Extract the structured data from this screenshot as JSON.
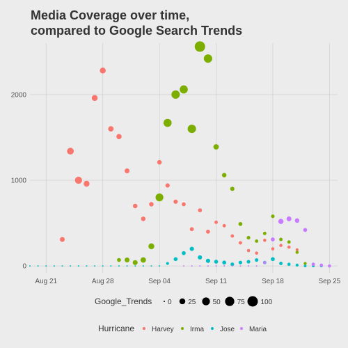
{
  "chart_data": {
    "type": "scatter",
    "title_line1": "Media Coverage over time,",
    "title_line2": "compared to Google Search Trends",
    "xlabel": "",
    "ylabel": "",
    "x_ticks": [
      "Aug 21",
      "Aug 28",
      "Sep 04",
      "Sep 11",
      "Sep 18",
      "Sep 25"
    ],
    "y_ticks": [
      "0",
      "1000",
      "2000"
    ],
    "ylim": [
      -80,
      2600
    ],
    "x_day_range": [
      19,
      57
    ],
    "grid": true,
    "size_legend": {
      "title": "Google_Trends",
      "breaks": [
        0,
        25,
        50,
        75,
        100
      ],
      "labels": [
        "0",
        "25",
        "50",
        "75",
        "100"
      ]
    },
    "color_legend": {
      "title": "Hurricane",
      "items": [
        {
          "name": "Harvey",
          "color": "#F8766D"
        },
        {
          "name": "Irma",
          "color": "#7CAE00"
        },
        {
          "name": "Jose",
          "color": "#00BFC4"
        },
        {
          "name": "Maria",
          "color": "#C77CFF"
        }
      ]
    },
    "series": [
      {
        "name": "Harvey",
        "color": "#F8766D",
        "points": [
          {
            "date": "Aug 23",
            "value": 310,
            "trend": 15
          },
          {
            "date": "Aug 24",
            "value": 1340,
            "trend": 35
          },
          {
            "date": "Aug 25",
            "value": 1000,
            "trend": 40
          },
          {
            "date": "Aug 26",
            "value": 960,
            "trend": 25
          },
          {
            "date": "Aug 27",
            "value": 1960,
            "trend": 25
          },
          {
            "date": "Aug 28",
            "value": 2280,
            "trend": 25
          },
          {
            "date": "Aug 29",
            "value": 1600,
            "trend": 20
          },
          {
            "date": "Aug 30",
            "value": 1510,
            "trend": 18
          },
          {
            "date": "Aug 31",
            "value": 1110,
            "trend": 15
          },
          {
            "date": "Sep 01",
            "value": 700,
            "trend": 12
          },
          {
            "date": "Sep 02",
            "value": 550,
            "trend": 12
          },
          {
            "date": "Sep 03",
            "value": 720,
            "trend": 12
          },
          {
            "date": "Sep 04",
            "value": 1210,
            "trend": 12
          },
          {
            "date": "Sep 05",
            "value": 940,
            "trend": 10
          },
          {
            "date": "Sep 06",
            "value": 750,
            "trend": 10
          },
          {
            "date": "Sep 07",
            "value": 720,
            "trend": 8
          },
          {
            "date": "Sep 08",
            "value": 430,
            "trend": 8
          },
          {
            "date": "Sep 09",
            "value": 650,
            "trend": 8
          },
          {
            "date": "Sep 10",
            "value": 400,
            "trend": 8
          },
          {
            "date": "Sep 11",
            "value": 510,
            "trend": 5
          },
          {
            "date": "Sep 12",
            "value": 470,
            "trend": 5
          },
          {
            "date": "Sep 13",
            "value": 350,
            "trend": 5
          },
          {
            "date": "Sep 14",
            "value": 270,
            "trend": 5
          },
          {
            "date": "Sep 15",
            "value": 180,
            "trend": 4
          },
          {
            "date": "Sep 16",
            "value": 150,
            "trend": 4
          },
          {
            "date": "Sep 17",
            "value": 300,
            "trend": 4
          },
          {
            "date": "Sep 18",
            "value": 200,
            "trend": 4
          },
          {
            "date": "Sep 19",
            "value": 240,
            "trend": 4
          },
          {
            "date": "Sep 20",
            "value": 220,
            "trend": 4
          },
          {
            "date": "Sep 21",
            "value": 190,
            "trend": 3
          },
          {
            "date": "Sep 22",
            "value": 30,
            "trend": 3
          }
        ]
      },
      {
        "name": "Irma",
        "color": "#7CAE00",
        "points": [
          {
            "date": "Aug 30",
            "value": 70,
            "trend": 8
          },
          {
            "date": "Aug 31",
            "value": 70,
            "trend": 15
          },
          {
            "date": "Sep 01",
            "value": 40,
            "trend": 15
          },
          {
            "date": "Sep 02",
            "value": 70,
            "trend": 20
          },
          {
            "date": "Sep 03",
            "value": 230,
            "trend": 25
          },
          {
            "date": "Sep 04",
            "value": 800,
            "trend": 50
          },
          {
            "date": "Sep 05",
            "value": 1670,
            "trend": 55
          },
          {
            "date": "Sep 06",
            "value": 2000,
            "trend": 60
          },
          {
            "date": "Sep 07",
            "value": 2060,
            "trend": 55
          },
          {
            "date": "Sep 08",
            "value": 1600,
            "trend": 60
          },
          {
            "date": "Sep 09",
            "value": 2560,
            "trend": 100
          },
          {
            "date": "Sep 10",
            "value": 2420,
            "trend": 60
          },
          {
            "date": "Sep 11",
            "value": 1390,
            "trend": 20
          },
          {
            "date": "Sep 12",
            "value": 1060,
            "trend": 12
          },
          {
            "date": "Sep 13",
            "value": 900,
            "trend": 10
          },
          {
            "date": "Sep 14",
            "value": 490,
            "trend": 8
          },
          {
            "date": "Sep 15",
            "value": 330,
            "trend": 6
          },
          {
            "date": "Sep 16",
            "value": 290,
            "trend": 5
          },
          {
            "date": "Sep 17",
            "value": 380,
            "trend": 5
          },
          {
            "date": "Sep 18",
            "value": 580,
            "trend": 6
          },
          {
            "date": "Sep 19",
            "value": 310,
            "trend": 5
          },
          {
            "date": "Sep 20",
            "value": 280,
            "trend": 5
          },
          {
            "date": "Sep 21",
            "value": 160,
            "trend": 4
          },
          {
            "date": "Sep 22",
            "value": 30,
            "trend": 3
          }
        ]
      },
      {
        "name": "Jose",
        "color": "#00BFC4",
        "points": [
          {
            "date": "Aug 19",
            "value": 0,
            "trend": 0
          },
          {
            "date": "Aug 20",
            "value": 0,
            "trend": 0
          },
          {
            "date": "Aug 21",
            "value": 0,
            "trend": 0
          },
          {
            "date": "Aug 22",
            "value": 0,
            "trend": 0
          },
          {
            "date": "Aug 23",
            "value": 0,
            "trend": 0
          },
          {
            "date": "Aug 24",
            "value": 0,
            "trend": 0
          },
          {
            "date": "Aug 25",
            "value": 0,
            "trend": 0
          },
          {
            "date": "Aug 26",
            "value": 0,
            "trend": 0
          },
          {
            "date": "Aug 27",
            "value": 0,
            "trend": 0
          },
          {
            "date": "Aug 28",
            "value": 0,
            "trend": 0
          },
          {
            "date": "Aug 29",
            "value": 0,
            "trend": 0
          },
          {
            "date": "Aug 30",
            "value": 0,
            "trend": 0
          },
          {
            "date": "Aug 31",
            "value": 0,
            "trend": 0
          },
          {
            "date": "Sep 01",
            "value": 0,
            "trend": 0
          },
          {
            "date": "Sep 02",
            "value": 0,
            "trend": 0
          },
          {
            "date": "Sep 03",
            "value": 0,
            "trend": 0
          },
          {
            "date": "Sep 04",
            "value": 0,
            "trend": 0
          },
          {
            "date": "Sep 05",
            "value": 30,
            "trend": 3
          },
          {
            "date": "Sep 06",
            "value": 80,
            "trend": 8
          },
          {
            "date": "Sep 07",
            "value": 150,
            "trend": 8
          },
          {
            "date": "Sep 08",
            "value": 200,
            "trend": 10
          },
          {
            "date": "Sep 09",
            "value": 100,
            "trend": 10
          },
          {
            "date": "Sep 10",
            "value": 60,
            "trend": 10
          },
          {
            "date": "Sep 11",
            "value": 50,
            "trend": 8
          },
          {
            "date": "Sep 12",
            "value": 40,
            "trend": 8
          },
          {
            "date": "Sep 13",
            "value": 20,
            "trend": 6
          },
          {
            "date": "Sep 14",
            "value": 40,
            "trend": 6
          },
          {
            "date": "Sep 15",
            "value": 50,
            "trend": 6
          },
          {
            "date": "Sep 16",
            "value": 70,
            "trend": 6
          },
          {
            "date": "Sep 17",
            "value": 40,
            "trend": 5
          },
          {
            "date": "Sep 18",
            "value": 80,
            "trend": 8
          },
          {
            "date": "Sep 19",
            "value": 30,
            "trend": 5
          },
          {
            "date": "Sep 20",
            "value": 20,
            "trend": 4
          },
          {
            "date": "Sep 21",
            "value": 10,
            "trend": 3
          },
          {
            "date": "Sep 22",
            "value": 0,
            "trend": 2
          },
          {
            "date": "Sep 23",
            "value": 0,
            "trend": 2
          },
          {
            "date": "Sep 24",
            "value": 0,
            "trend": 2
          }
        ]
      },
      {
        "name": "Maria",
        "color": "#C77CFF",
        "points": [
          {
            "date": "Sep 07",
            "value": 0,
            "trend": 0
          },
          {
            "date": "Sep 08",
            "value": 0,
            "trend": 0
          },
          {
            "date": "Sep 09",
            "value": 0,
            "trend": 0
          },
          {
            "date": "Sep 10",
            "value": 0,
            "trend": 0
          },
          {
            "date": "Sep 11",
            "value": 0,
            "trend": 0
          },
          {
            "date": "Sep 12",
            "value": 0,
            "trend": 0
          },
          {
            "date": "Sep 13",
            "value": 0,
            "trend": 0
          },
          {
            "date": "Sep 14",
            "value": 0,
            "trend": 0
          },
          {
            "date": "Sep 15",
            "value": 0,
            "trend": 0
          },
          {
            "date": "Sep 16",
            "value": 0,
            "trend": 0
          },
          {
            "date": "Sep 17",
            "value": 40,
            "trend": 3
          },
          {
            "date": "Sep 18",
            "value": 310,
            "trend": 8
          },
          {
            "date": "Sep 19",
            "value": 520,
            "trend": 18
          },
          {
            "date": "Sep 20",
            "value": 550,
            "trend": 15
          },
          {
            "date": "Sep 21",
            "value": 530,
            "trend": 12
          },
          {
            "date": "Sep 22",
            "value": 420,
            "trend": 8
          },
          {
            "date": "Sep 23",
            "value": 20,
            "trend": 5
          },
          {
            "date": "Sep 24",
            "value": 10,
            "trend": 4
          },
          {
            "date": "Sep 25",
            "value": 0,
            "trend": 4
          }
        ]
      }
    ]
  }
}
